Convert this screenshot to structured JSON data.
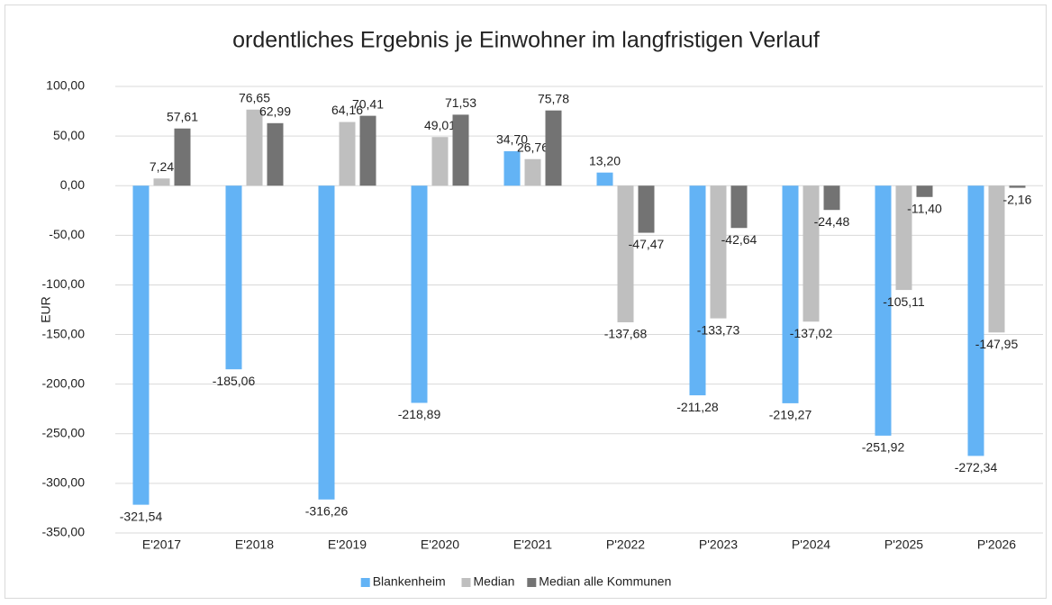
{
  "chart_data": {
    "type": "bar",
    "title": "ordentliches Ergebnis je Einwohner im langfristigen Verlauf",
    "y_label": "EUR",
    "categories": [
      "E'2017",
      "E'2018",
      "E'2019",
      "E'2020",
      "E'2021",
      "P'2022",
      "P'2023",
      "P'2024",
      "P'2025",
      "P'2026"
    ],
    "series": [
      {
        "name": "Blankenheim",
        "color": "#63b3f5",
        "values": [
          -321.54,
          -185.06,
          -316.26,
          -218.89,
          34.7,
          13.2,
          -211.28,
          -219.27,
          -251.92,
          -272.34
        ],
        "value_labels": [
          "-321,54",
          "-185,06",
          "-316,26",
          "-218,89",
          "34,70",
          "13,20",
          "-211,28",
          "-219,27",
          "-251,92",
          "-272,34"
        ]
      },
      {
        "name": "Median",
        "color": "#bfbfbf",
        "values": [
          7.24,
          76.65,
          64.16,
          49.01,
          26.76,
          -137.68,
          -133.73,
          -137.02,
          -105.11,
          -147.95
        ],
        "value_labels": [
          "7,24",
          "76,65",
          "64,16",
          "49,01",
          "26,76",
          "-137,68",
          "-133,73",
          "-137,02",
          "-105,11",
          "-147,95"
        ]
      },
      {
        "name": "Median alle Kommunen",
        "color": "#737373",
        "values": [
          57.61,
          62.99,
          70.41,
          71.53,
          75.78,
          -47.47,
          -42.64,
          -24.48,
          -11.4,
          -2.16
        ],
        "value_labels": [
          "57,61",
          "62,99",
          "70,41",
          "71,53",
          "75,78",
          "-47,47",
          "-42,64",
          "-24,48",
          "-11,40",
          "-2,16"
        ]
      }
    ],
    "ylim": [
      -350,
      100
    ],
    "yticks": [
      {
        "value": -350,
        "label": "-350,00"
      },
      {
        "value": -300,
        "label": "-300,00"
      },
      {
        "value": -250,
        "label": "-250,00"
      },
      {
        "value": -200,
        "label": "-200,00"
      },
      {
        "value": -150,
        "label": "-150,00"
      },
      {
        "value": -100,
        "label": "-100,00"
      },
      {
        "value": -50,
        "label": "-50,00"
      },
      {
        "value": 0,
        "label": "0,00"
      },
      {
        "value": 50,
        "label": "50,00"
      },
      {
        "value": 100,
        "label": "100,00"
      }
    ],
    "grid": true,
    "legend": "bottom"
  }
}
